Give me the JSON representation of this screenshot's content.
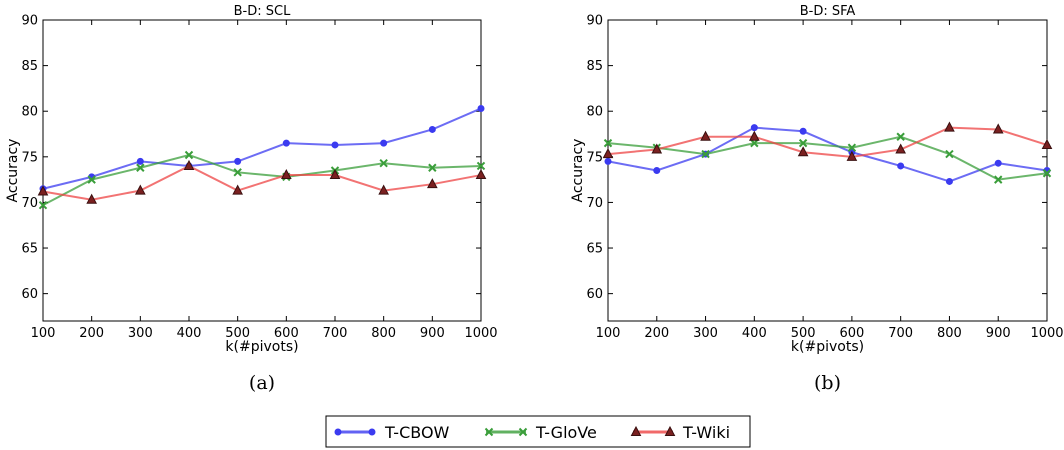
{
  "series_styles": [
    {
      "name": "T-CBOW",
      "color": "#3b3bf0",
      "marker": "circle"
    },
    {
      "name": "T-GloVe",
      "color": "#3a9e3a",
      "marker": "x"
    },
    {
      "name": "T-Wiki",
      "color": "#ee4444",
      "marker": "triangle"
    }
  ],
  "legend": {
    "items": [
      "T-CBOW",
      "T-GloVe",
      "T-Wiki"
    ],
    "placement": "bottom-center"
  },
  "chart_data": [
    {
      "type": "line",
      "title": "B-D: SCL",
      "xlabel": "k(#pivots)",
      "ylabel": "Accuracy",
      "caption": "(a)",
      "x": [
        100,
        200,
        300,
        400,
        500,
        600,
        700,
        800,
        900,
        1000
      ],
      "xlim": [
        100,
        1000
      ],
      "ylim": [
        57,
        90
      ],
      "yticks": [
        60,
        65,
        70,
        75,
        80,
        85,
        90
      ],
      "xticks": [
        100,
        200,
        300,
        400,
        500,
        600,
        700,
        800,
        900,
        1000
      ],
      "grid": false,
      "series": [
        {
          "name": "T-CBOW",
          "values": [
            71.5,
            72.8,
            74.5,
            74.0,
            74.5,
            76.5,
            76.3,
            76.5,
            78.0,
            80.3
          ]
        },
        {
          "name": "T-GloVe",
          "values": [
            69.7,
            72.5,
            73.8,
            75.2,
            73.3,
            72.8,
            73.5,
            74.3,
            73.8,
            74.0
          ]
        },
        {
          "name": "T-Wiki",
          "values": [
            71.2,
            70.3,
            71.3,
            74.0,
            71.3,
            73.0,
            73.0,
            71.3,
            72.0,
            73.0
          ]
        }
      ]
    },
    {
      "type": "line",
      "title": "B-D: SFA",
      "xlabel": "k(#pivots)",
      "ylabel": "Accuracy",
      "caption": "(b)",
      "x": [
        100,
        200,
        300,
        400,
        500,
        600,
        700,
        800,
        900,
        1000
      ],
      "xlim": [
        100,
        1000
      ],
      "ylim": [
        57,
        90
      ],
      "yticks": [
        60,
        65,
        70,
        75,
        80,
        85,
        90
      ],
      "xticks": [
        100,
        200,
        300,
        400,
        500,
        600,
        700,
        800,
        900,
        1000
      ],
      "grid": false,
      "series": [
        {
          "name": "T-CBOW",
          "values": [
            74.5,
            73.5,
            75.3,
            78.2,
            77.8,
            75.5,
            74.0,
            72.3,
            74.3,
            73.5
          ]
        },
        {
          "name": "T-GloVe",
          "values": [
            76.5,
            76.0,
            75.3,
            76.5,
            76.5,
            76.0,
            77.2,
            75.3,
            72.5,
            73.2
          ]
        },
        {
          "name": "T-Wiki",
          "values": [
            75.3,
            75.8,
            77.2,
            77.2,
            75.5,
            75.0,
            75.8,
            78.2,
            78.0,
            76.3
          ]
        }
      ]
    }
  ]
}
